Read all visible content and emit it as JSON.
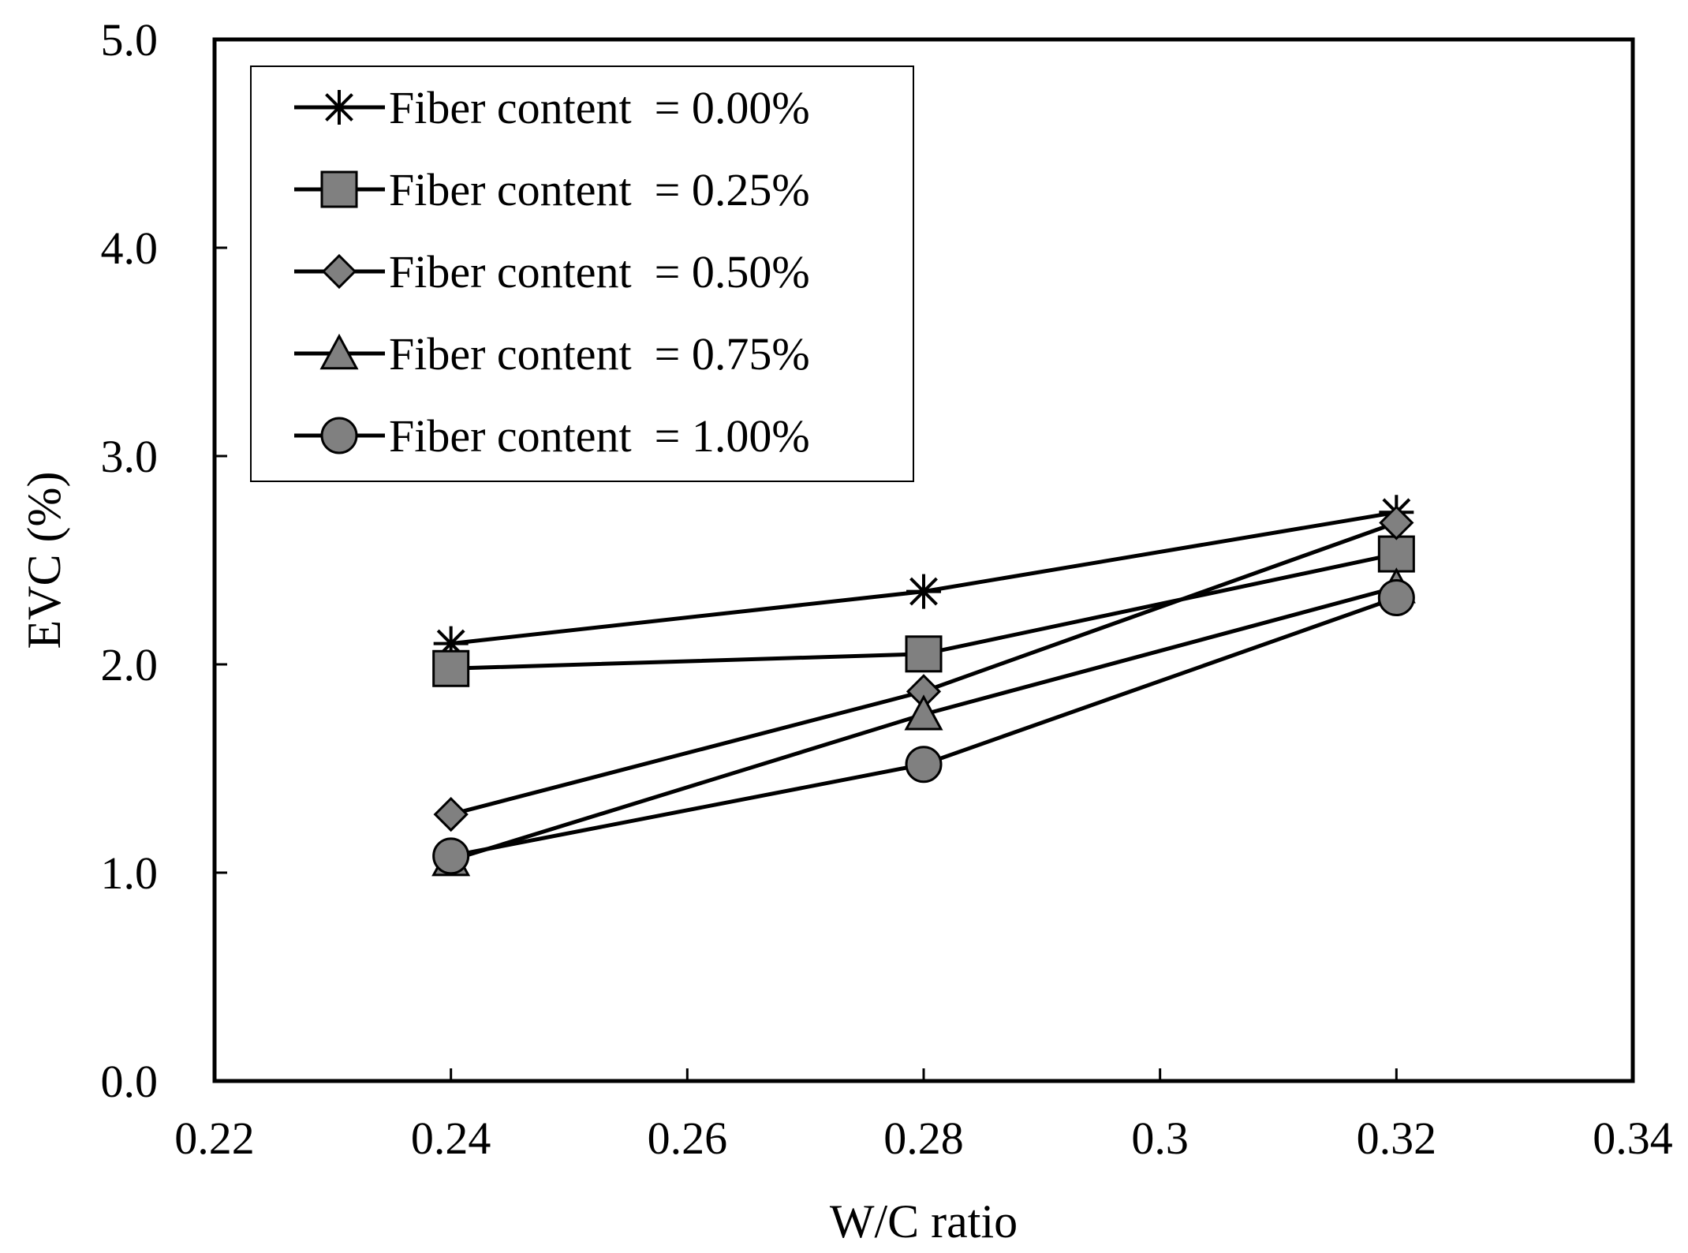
{
  "chart_data": {
    "type": "line",
    "title": "",
    "xlabel": "W/C ratio",
    "ylabel": "EVC (%)",
    "xlim": [
      0.22,
      0.34
    ],
    "ylim": [
      0.0,
      5.0
    ],
    "x_ticks": [
      0.22,
      0.24,
      0.26,
      0.28,
      0.3,
      0.32,
      0.34
    ],
    "x_tick_labels": [
      "0.22",
      "0.24",
      "0.26",
      "0.28",
      "0.3",
      "0.32",
      "0.34"
    ],
    "y_ticks": [
      0,
      1,
      2,
      3,
      4,
      5
    ],
    "y_tick_labels": [
      "0.0",
      "1.0",
      "2.0",
      "3.0",
      "4.0",
      "5.0"
    ],
    "grid": false,
    "legend_position": "top-left",
    "x": [
      0.24,
      0.28,
      0.32
    ],
    "series": [
      {
        "name": "Fiber content  = 0.00%",
        "marker": "star",
        "values": [
          2.1,
          2.35,
          2.73
        ]
      },
      {
        "name": "Fiber content  = 0.25%",
        "marker": "square",
        "values": [
          1.98,
          2.05,
          2.53
        ]
      },
      {
        "name": "Fiber content  = 0.50%",
        "marker": "diamond",
        "values": [
          1.28,
          1.87,
          2.68
        ]
      },
      {
        "name": "Fiber content  = 0.75%",
        "marker": "triangle",
        "values": [
          1.06,
          1.76,
          2.37
        ]
      },
      {
        "name": "Fiber content  = 1.00%",
        "marker": "circle",
        "values": [
          1.08,
          1.52,
          2.32
        ]
      }
    ],
    "colors": {
      "line": "#000000",
      "marker_fill": "#808080",
      "marker_stroke": "#000000"
    }
  }
}
